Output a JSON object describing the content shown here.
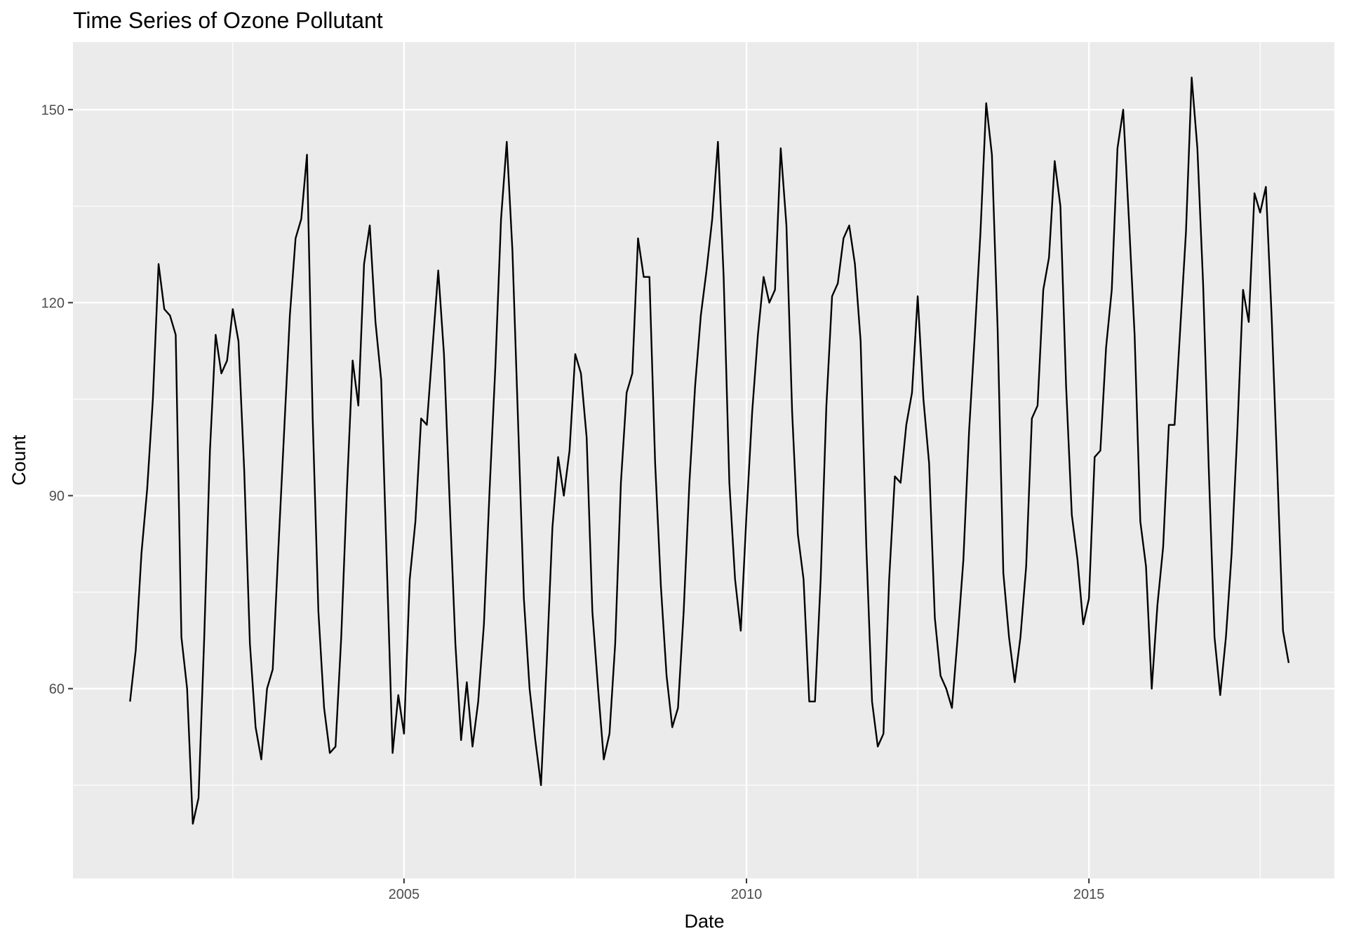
{
  "chart_data": {
    "type": "line",
    "title": "Time Series of Ozone Pollutant",
    "xlabel": "Date",
    "ylabel": "Count",
    "x_start": "2001-01",
    "x_frequency": "monthly",
    "x_ticks": [
      "2005",
      "2010",
      "2015"
    ],
    "y_ticks": [
      60,
      90,
      120,
      150
    ],
    "xlim": [
      "2000-03",
      "2018-08"
    ],
    "ylim": [
      30.5,
      160.5
    ],
    "grid": true,
    "legend": "none",
    "colors": {
      "line": "#000000",
      "panel": "#ebebeb",
      "grid": "#ffffff",
      "tick_text": "#4d4d4d"
    },
    "series": [
      {
        "values": [
          58,
          66,
          81,
          91,
          105,
          126,
          119,
          118,
          115,
          68,
          60,
          39,
          43,
          68,
          97,
          115,
          109,
          111,
          119,
          114,
          94,
          67,
          54,
          49,
          60,
          63,
          82,
          100,
          118,
          130,
          133,
          143,
          102,
          72,
          57,
          50,
          51,
          68,
          91,
          111,
          104,
          126,
          132,
          117,
          108,
          79,
          50,
          59,
          53,
          77,
          86,
          102,
          101,
          113,
          125,
          112,
          89,
          67,
          52,
          61,
          51,
          58,
          70,
          91,
          110,
          133,
          145,
          128,
          101,
          74,
          60,
          52,
          45,
          64,
          85,
          96,
          90,
          97,
          112,
          109,
          99,
          72,
          60,
          49,
          53,
          67,
          92,
          106,
          109,
          130,
          124,
          124,
          95,
          76,
          62,
          54,
          57,
          72,
          92,
          107,
          118,
          125,
          133,
          145,
          124,
          92,
          77,
          69,
          87,
          103,
          115,
          124,
          120,
          122,
          144,
          132,
          103,
          84,
          77,
          58,
          58,
          77,
          104,
          121,
          123,
          130,
          132,
          126,
          114,
          82,
          58,
          51,
          53,
          77,
          93,
          92,
          101,
          106,
          121,
          105,
          95,
          71,
          62,
          60,
          57,
          68,
          80,
          100,
          115,
          131,
          151,
          143,
          116,
          78,
          68,
          61,
          68,
          79,
          102,
          104,
          122,
          127,
          142,
          135,
          107,
          87,
          80,
          70,
          74,
          96,
          97,
          113,
          122,
          144,
          150,
          133,
          115,
          86,
          79,
          60,
          73,
          82,
          101,
          101,
          116,
          131,
          155,
          144,
          123,
          94,
          68,
          59,
          68,
          81,
          100,
          122,
          117,
          137,
          134,
          138,
          118,
          94,
          69,
          64
        ]
      }
    ]
  }
}
